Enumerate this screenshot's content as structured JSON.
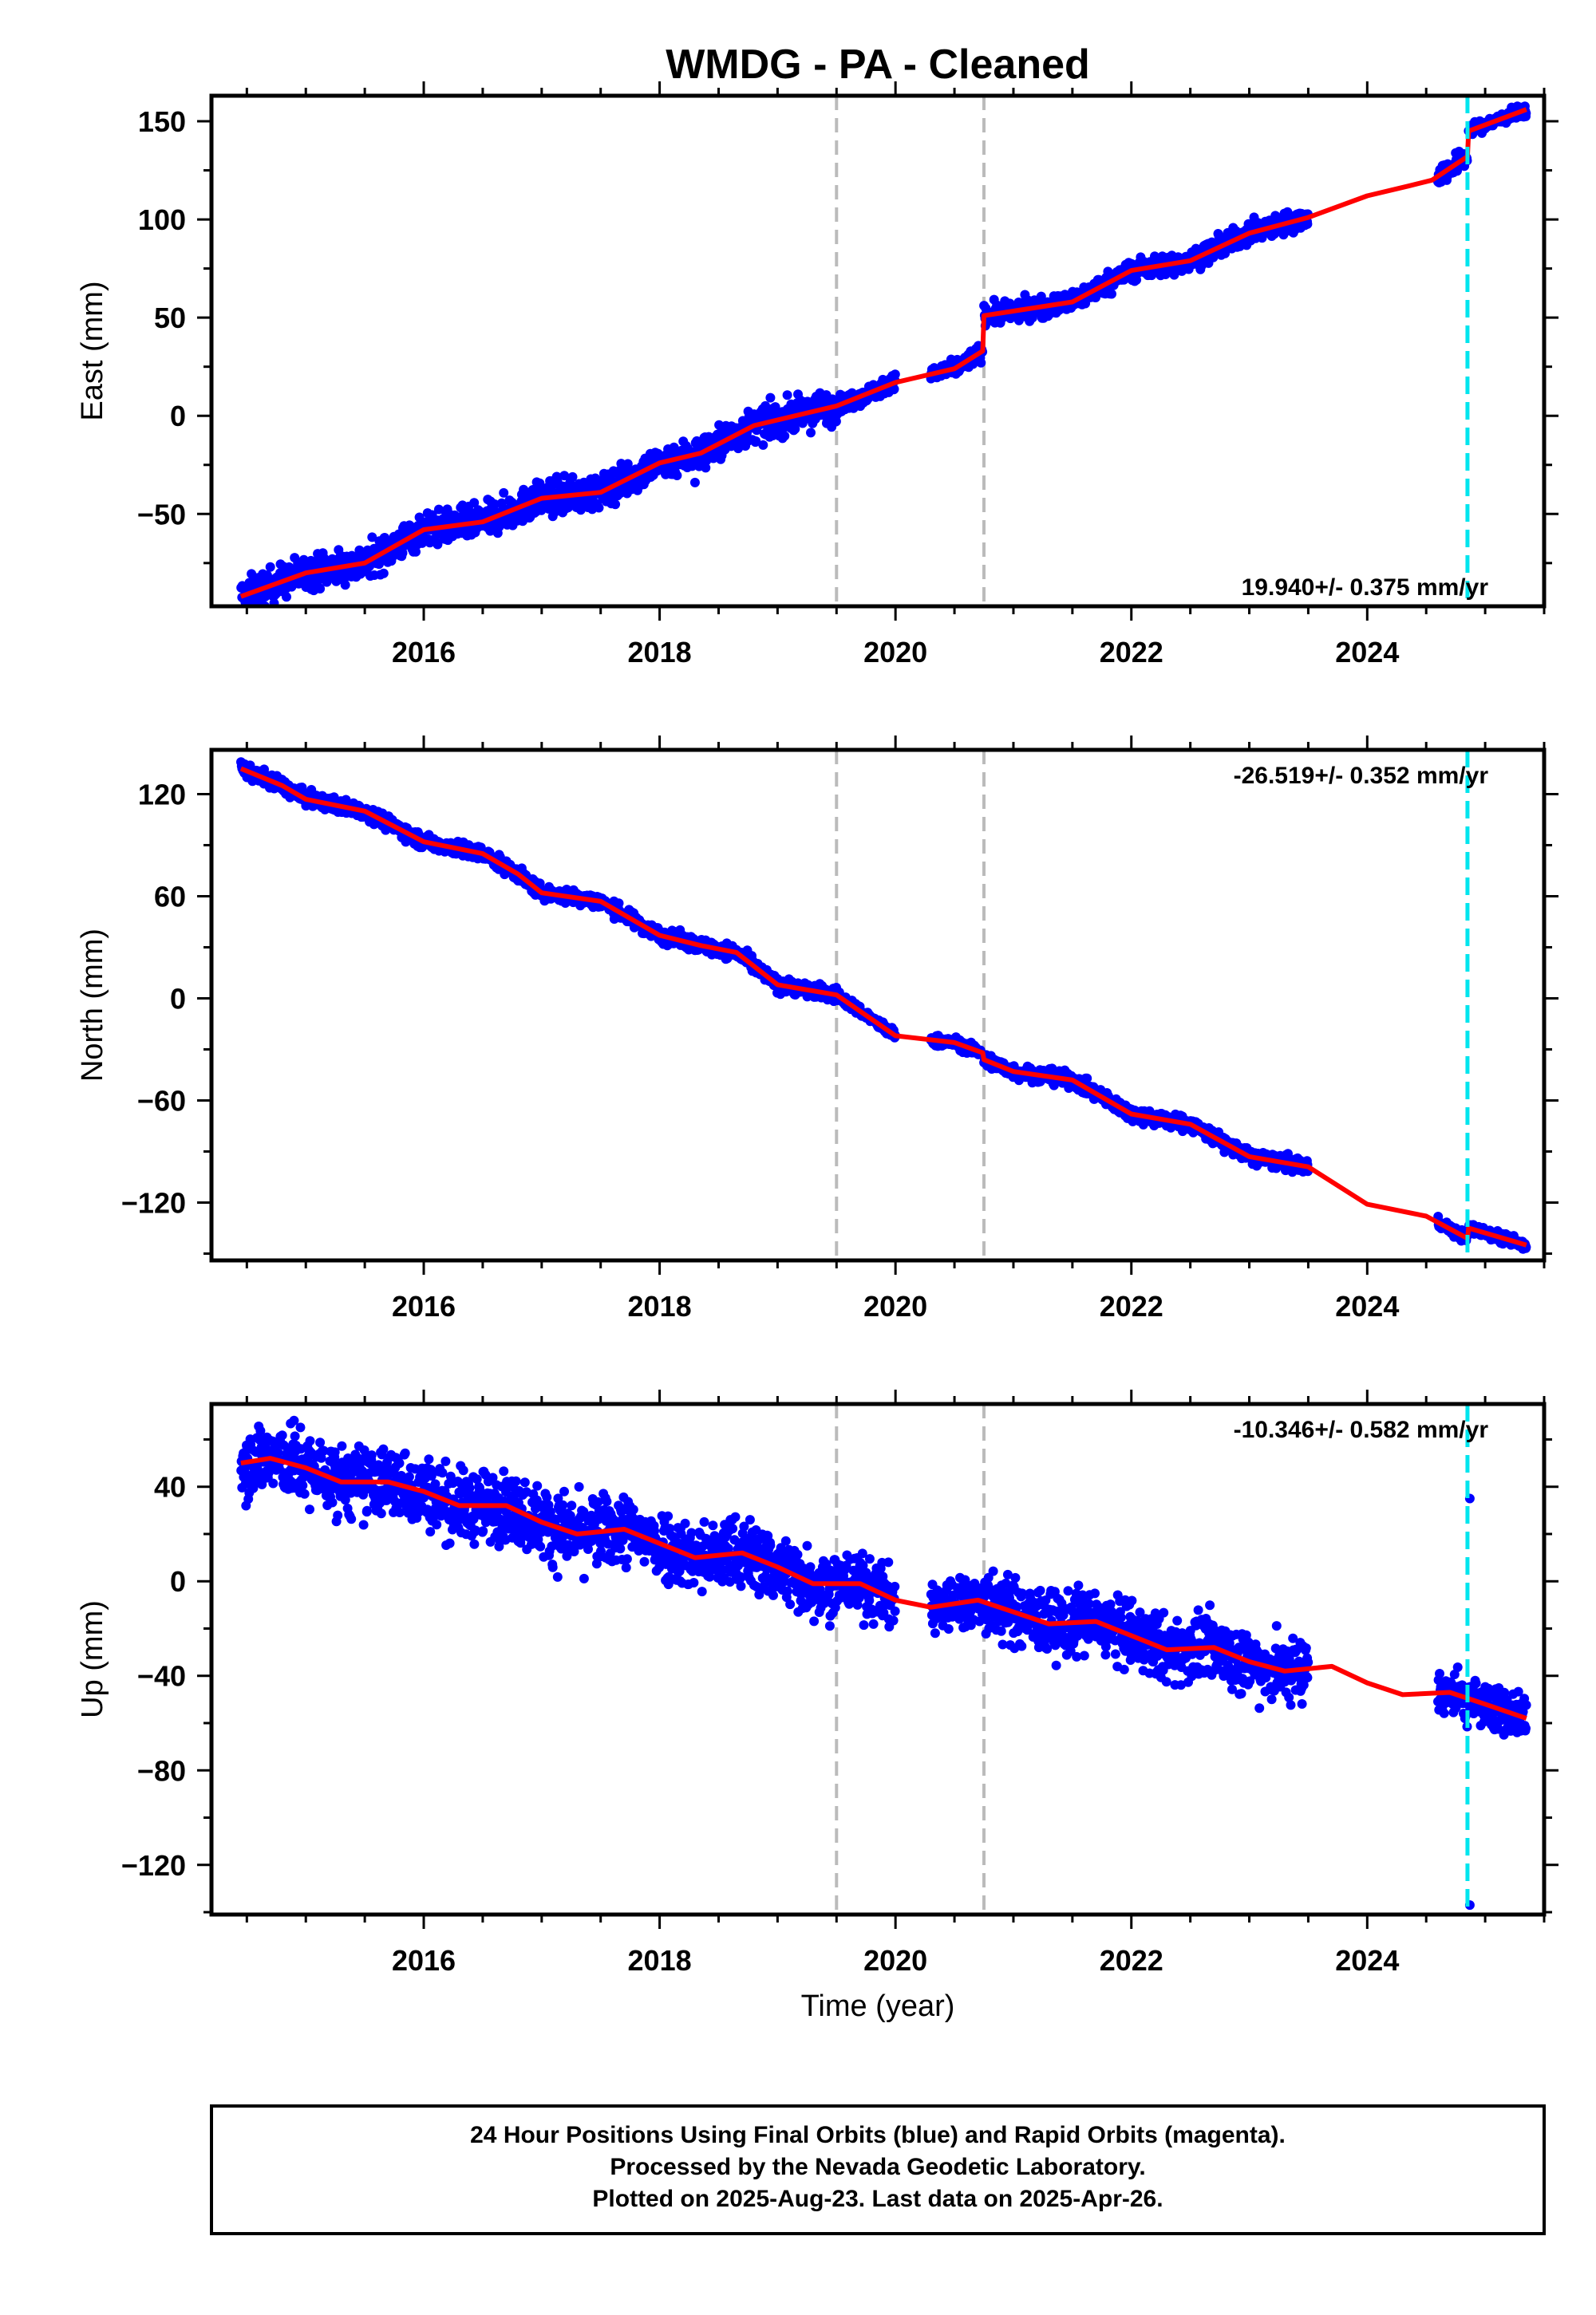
{
  "chart_data": {
    "title": "WMDG  - PA - Cleaned",
    "xlabel": "Time (year)",
    "xlim": [
      2014.2,
      2025.5
    ],
    "xticks": [
      2016,
      2018,
      2020,
      2022,
      2024
    ],
    "vlines_gray": [
      2019.5,
      2020.75
    ],
    "vline_cyan": 2024.85,
    "colors": {
      "points": "#0000ff",
      "model": "#ff0000",
      "steps": "#bbbbbb",
      "equipment": "#00e5ee"
    },
    "panels": [
      {
        "type": "scatter",
        "ylabel": "East (mm)",
        "ylim": [
          -97,
          163
        ],
        "yticks": [
          -50,
          0,
          50,
          100,
          150
        ],
        "rate": "19.940+/- 0.375 mm/yr",
        "rate_pos": "bottom-right",
        "model": [
          [
            2014.45,
            -92
          ],
          [
            2015.0,
            -80
          ],
          [
            2015.5,
            -75
          ],
          [
            2016.0,
            -58
          ],
          [
            2016.5,
            -54
          ],
          [
            2017.0,
            -42
          ],
          [
            2017.5,
            -39
          ],
          [
            2018.0,
            -24
          ],
          [
            2018.35,
            -19
          ],
          [
            2018.8,
            -5
          ],
          [
            2019.5,
            5
          ],
          [
            2020.0,
            17
          ],
          [
            2020.5,
            24
          ],
          [
            2020.74,
            33
          ],
          [
            2020.75,
            51
          ],
          [
            2021.5,
            58
          ],
          [
            2022.0,
            74
          ],
          [
            2022.5,
            79
          ],
          [
            2023.0,
            93
          ],
          [
            2023.5,
            101
          ],
          [
            2024.0,
            112
          ],
          [
            2024.35,
            117
          ],
          [
            2024.55,
            120
          ],
          [
            2024.85,
            132
          ],
          [
            2024.86,
            145
          ],
          [
            2025.35,
            156
          ]
        ],
        "data_segments": [
          [
            2014.45,
            2019.5,
            8
          ],
          [
            2019.5,
            2020.0,
            4
          ],
          [
            2020.3,
            2020.74,
            4
          ],
          [
            2020.75,
            2023.5,
            5
          ],
          [
            2024.6,
            2024.85,
            5
          ],
          [
            2024.86,
            2025.35,
            3
          ]
        ],
        "outliers": [
          [
            2018.3,
            -34
          ]
        ]
      },
      {
        "type": "scatter",
        "ylabel": "North (mm)",
        "ylim": [
          -154,
          146
        ],
        "yticks": [
          -120,
          -60,
          0,
          60,
          120
        ],
        "rate": "-26.519+/- 0.352 mm/yr",
        "rate_pos": "top-right",
        "model": [
          [
            2014.45,
            135
          ],
          [
            2014.8,
            125
          ],
          [
            2015.0,
            117
          ],
          [
            2015.5,
            110
          ],
          [
            2016.0,
            92
          ],
          [
            2016.5,
            85
          ],
          [
            2016.8,
            73
          ],
          [
            2017.0,
            62
          ],
          [
            2017.5,
            57
          ],
          [
            2018.0,
            37
          ],
          [
            2018.35,
            31
          ],
          [
            2018.65,
            27
          ],
          [
            2019.0,
            8
          ],
          [
            2019.5,
            2
          ],
          [
            2020.0,
            -22
          ],
          [
            2020.5,
            -26
          ],
          [
            2020.74,
            -32
          ],
          [
            2020.75,
            -36
          ],
          [
            2021.0,
            -43
          ],
          [
            2021.5,
            -48
          ],
          [
            2022.0,
            -68
          ],
          [
            2022.5,
            -74
          ],
          [
            2023.0,
            -93
          ],
          [
            2023.5,
            -99
          ],
          [
            2024.0,
            -121
          ],
          [
            2024.5,
            -128
          ],
          [
            2024.85,
            -141
          ],
          [
            2024.86,
            -135
          ],
          [
            2025.35,
            -145
          ]
        ],
        "data_segments": [
          [
            2014.45,
            2019.5,
            4
          ],
          [
            2019.5,
            2020.0,
            3
          ],
          [
            2020.3,
            2020.74,
            3
          ],
          [
            2020.75,
            2023.5,
            4
          ],
          [
            2024.6,
            2024.85,
            3
          ],
          [
            2024.86,
            2025.35,
            3
          ]
        ],
        "outliers": []
      },
      {
        "type": "scatter",
        "ylabel": "Up (mm)",
        "ylim": [
          -141,
          75
        ],
        "yticks": [
          -120,
          -80,
          -40,
          0,
          40
        ],
        "rate": "-10.346+/- 0.582 mm/yr",
        "rate_pos": "top-right",
        "model": [
          [
            2014.45,
            50
          ],
          [
            2014.7,
            52
          ],
          [
            2015.0,
            48
          ],
          [
            2015.3,
            42
          ],
          [
            2015.7,
            42
          ],
          [
            2016.0,
            38
          ],
          [
            2016.3,
            32
          ],
          [
            2016.7,
            32
          ],
          [
            2017.0,
            25
          ],
          [
            2017.3,
            20
          ],
          [
            2017.7,
            22
          ],
          [
            2018.0,
            16
          ],
          [
            2018.3,
            10
          ],
          [
            2018.7,
            12
          ],
          [
            2019.0,
            6
          ],
          [
            2019.3,
            -1
          ],
          [
            2019.7,
            -1
          ],
          [
            2020.0,
            -8
          ],
          [
            2020.3,
            -11
          ],
          [
            2020.7,
            -8
          ],
          [
            2021.0,
            -13
          ],
          [
            2021.3,
            -18
          ],
          [
            2021.7,
            -17
          ],
          [
            2022.0,
            -23
          ],
          [
            2022.3,
            -29
          ],
          [
            2022.7,
            -28
          ],
          [
            2023.0,
            -34
          ],
          [
            2023.3,
            -38
          ],
          [
            2023.7,
            -36
          ],
          [
            2024.0,
            -43
          ],
          [
            2024.3,
            -48
          ],
          [
            2024.7,
            -47
          ],
          [
            2025.0,
            -52
          ],
          [
            2025.35,
            -58
          ]
        ],
        "data_segments": [
          [
            2014.45,
            2019.5,
            14
          ],
          [
            2019.5,
            2020.0,
            12
          ],
          [
            2020.3,
            2020.74,
            11
          ],
          [
            2020.75,
            2023.5,
            13
          ],
          [
            2024.6,
            2024.85,
            10
          ],
          [
            2024.86,
            2025.35,
            9
          ]
        ],
        "outliers": [
          [
            2024.87,
            35
          ],
          [
            2024.87,
            -137
          ],
          [
            2014.9,
            68
          ],
          [
            2018.6,
            26
          ]
        ]
      }
    ]
  },
  "footer": {
    "line1": "24 Hour Positions Using Final Orbits (blue) and Rapid Orbits (magenta).",
    "line2": "Processed by the Nevada Geodetic Laboratory.",
    "line3": "Plotted on 2025-Aug-23. Last data on 2025-Apr-26."
  }
}
